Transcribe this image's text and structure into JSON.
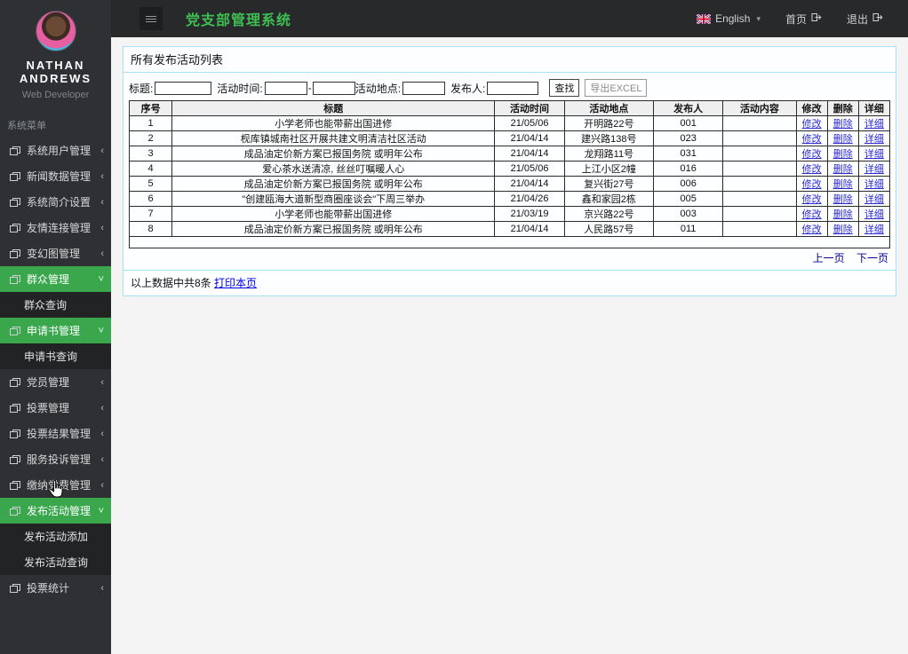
{
  "topbar": {
    "title": "党支部管理系统",
    "language_label": "English",
    "home_label": "首页",
    "logout_label": "退出"
  },
  "sidebar": {
    "profile": {
      "name_line1": "NATHAN",
      "name_line2": "ANDREWS",
      "role": "Web Developer"
    },
    "menu_label": "系统菜单",
    "items": [
      {
        "label": "系统用户管理",
        "state": "collapsed"
      },
      {
        "label": "新闻数据管理",
        "state": "collapsed"
      },
      {
        "label": "系统简介设置",
        "state": "collapsed"
      },
      {
        "label": "友情连接管理",
        "state": "collapsed"
      },
      {
        "label": "变幻图管理",
        "state": "collapsed"
      },
      {
        "label": "群众管理",
        "state": "expanded",
        "children": [
          "群众查询"
        ]
      },
      {
        "label": "申请书管理",
        "state": "expanded",
        "children": [
          "申请书查询"
        ]
      },
      {
        "label": "党员管理",
        "state": "collapsed"
      },
      {
        "label": "投票管理",
        "state": "collapsed"
      },
      {
        "label": "投票结果管理",
        "state": "collapsed"
      },
      {
        "label": "服务投诉管理",
        "state": "collapsed"
      },
      {
        "label": "缴纳党费管理",
        "state": "collapsed"
      },
      {
        "label": "发布活动管理",
        "state": "expanded",
        "children": [
          "发布活动添加",
          "发布活动查询"
        ]
      },
      {
        "label": "投票统计",
        "state": "collapsed"
      }
    ]
  },
  "panel": {
    "title": "所有发布活动列表",
    "search": {
      "title_label": "标题:",
      "time_label": "活动时间:",
      "time_separator": "-",
      "place_label": "活动地点:",
      "publisher_label": "发布人:",
      "search_button": "查找",
      "export_button": "导出EXCEL"
    },
    "table": {
      "headers": [
        "序号",
        "标题",
        "活动时间",
        "活动地点",
        "发布人",
        "活动内容",
        "修改",
        "删除",
        "详细"
      ],
      "rows": [
        {
          "no": "1",
          "title": "小学老师也能带薪出国进修",
          "time": "21/05/06",
          "place": "开明路22号",
          "publisher": "001",
          "content": ""
        },
        {
          "no": "2",
          "title": "枧库镇城南社区开展共建文明清洁社区活动",
          "time": "21/04/14",
          "place": "建兴路138号",
          "publisher": "023",
          "content": ""
        },
        {
          "no": "3",
          "title": "成品油定价新方案已报国务院 或明年公布",
          "time": "21/04/14",
          "place": "龙翔路11号",
          "publisher": "031",
          "content": ""
        },
        {
          "no": "4",
          "title": "爱心茶水送清凉, 丝丝叮嘱暖人心",
          "time": "21/05/06",
          "place": "上江小区2幢",
          "publisher": "016",
          "content": ""
        },
        {
          "no": "5",
          "title": "成品油定价新方案已报国务院 或明年公布",
          "time": "21/04/14",
          "place": "复兴街27号",
          "publisher": "006",
          "content": ""
        },
        {
          "no": "6",
          "title": "\"创建瓯海大道新型商圈座谈会\"下周三举办",
          "time": "21/04/26",
          "place": "鑫和家园2栋",
          "publisher": "005",
          "content": ""
        },
        {
          "no": "7",
          "title": "小学老师也能带薪出国进修",
          "time": "21/03/19",
          "place": "京兴路22号",
          "publisher": "003",
          "content": ""
        },
        {
          "no": "8",
          "title": "成品油定价新方案已报国务院 或明年公布",
          "time": "21/04/14",
          "place": "人民路57号",
          "publisher": "011",
          "content": ""
        }
      ]
    },
    "row_actions": {
      "edit": "修改",
      "delete": "删除",
      "detail": "详细"
    },
    "pagination": {
      "prev": "上一页",
      "next": "下一页"
    },
    "footer": {
      "summary": "以上数据中共8条",
      "print_link": "打印本页"
    }
  },
  "colors": {
    "accent_green": "#3aa74d",
    "title_green": "#3fbf52",
    "panel_border": "#a5e2f1",
    "link_blue": "#2b2bd5"
  }
}
